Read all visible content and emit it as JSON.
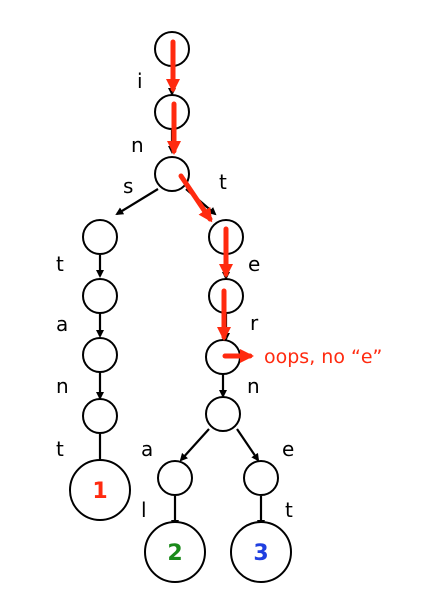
{
  "edge_labels": {
    "i": "i",
    "n1": "n",
    "s": "s",
    "t_right": "t",
    "t_left1": "t",
    "e1": "e",
    "a_left": "a",
    "r": "r",
    "n_left": "n",
    "n_right": "n",
    "t_left2": "t",
    "a_right": "a",
    "e2": "e",
    "l": "l",
    "t_right2": "t"
  },
  "leaf_labels": {
    "leaf1": "1",
    "leaf2": "2",
    "leaf3": "3"
  },
  "annotation": "oops, no “e”",
  "colors": {
    "search_path": "#ff2a0f",
    "leaf1": "#ff2a0f",
    "leaf2": "#1a8a1a",
    "leaf3": "#1f3fe0",
    "edges": "#000000"
  }
}
